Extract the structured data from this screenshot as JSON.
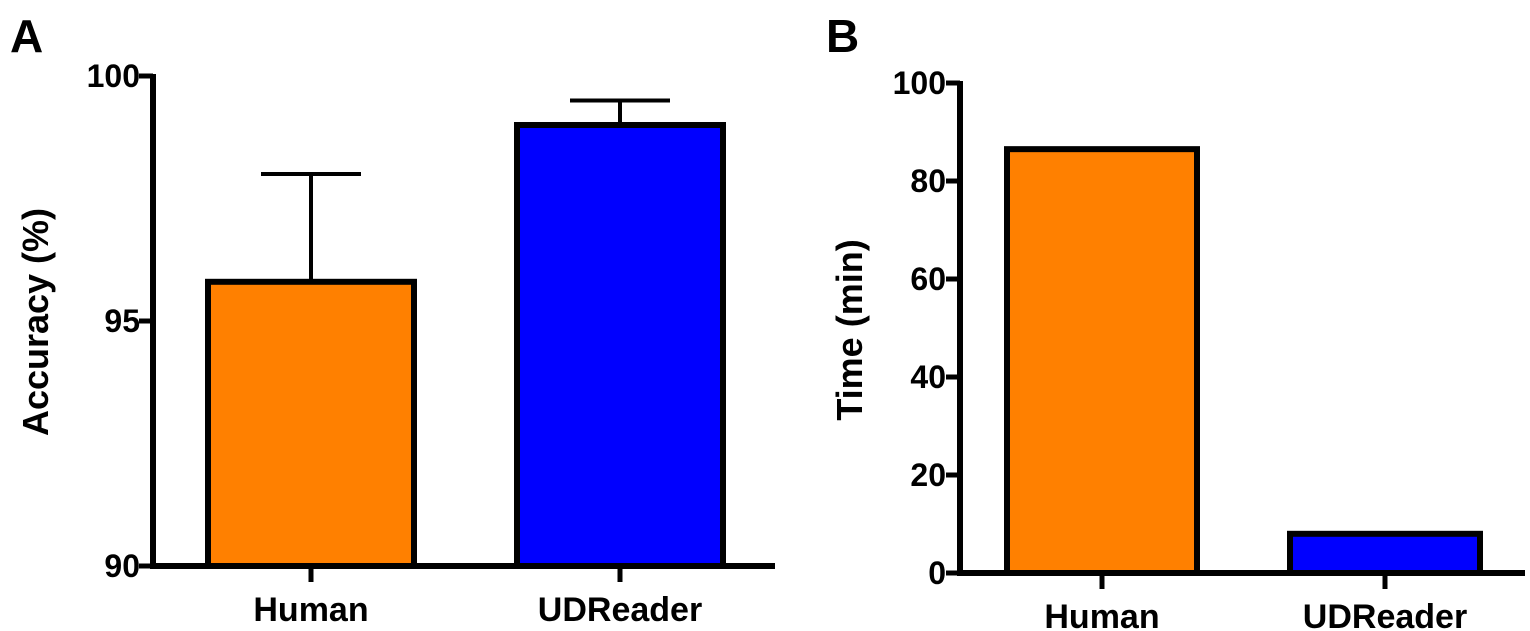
{
  "chart_data": [
    {
      "panel": "A",
      "type": "bar",
      "categories": [
        "Human",
        "UDReader"
      ],
      "values": [
        95.8,
        99.0
      ],
      "error_upper": [
        98.0,
        99.5
      ],
      "colors": [
        "#ff8000",
        "#0000ff"
      ],
      "title": "",
      "xlabel": "",
      "ylabel": "Accuracy (%)",
      "ylim": [
        90,
        100
      ],
      "yticks": [
        90,
        95,
        100
      ],
      "grid": false
    },
    {
      "panel": "B",
      "type": "bar",
      "categories": [
        "Human",
        "UDReader"
      ],
      "values": [
        86.5,
        8.0
      ],
      "colors": [
        "#ff8000",
        "#0000ff"
      ],
      "title": "",
      "xlabel": "",
      "ylabel": "Time (min)",
      "ylim": [
        0,
        100
      ],
      "yticks": [
        0,
        20,
        40,
        60,
        80,
        100
      ],
      "grid": false
    }
  ]
}
